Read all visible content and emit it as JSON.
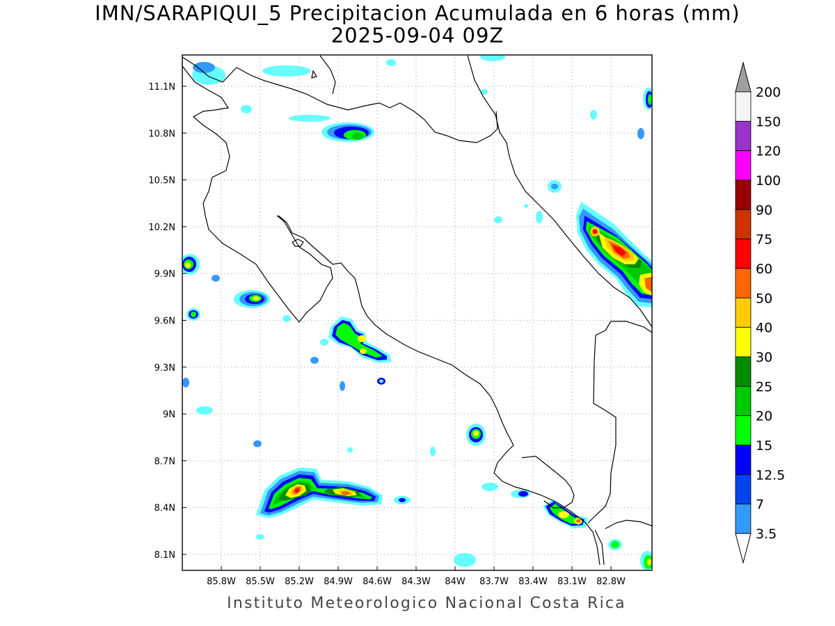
{
  "title_line1": "IMN/SARAPIQUI_5 Precipitacion Acumulada en 6 horas (mm)",
  "title_line2": "2025-09-04 09Z",
  "footer": "Instituto Meteorologico Nacional Costa Rica",
  "map": {
    "lon_range": [
      -86.05,
      -83.05
    ],
    "lat_range": [
      8.0,
      11.3
    ],
    "lon_ticks": [
      "85.8W",
      "85.5W",
      "85.2W",
      "84.9W",
      "84.6W",
      "84.3W",
      "84W",
      "83.7W",
      "83.4W",
      "83.1W",
      "82.8W"
    ],
    "lat_ticks": [
      "11.1N",
      "10.8N",
      "10.5N",
      "10.2N",
      "9.9N",
      "9.6N",
      "9.3N",
      "9N",
      "8.7N",
      "8.4N",
      "8.1N"
    ]
  },
  "colorbar": {
    "levels": [
      "3.5",
      "7",
      "12.5",
      "15",
      "20",
      "25",
      "30",
      "40",
      "50",
      "60",
      "75",
      "90",
      "100",
      "120",
      "150",
      "200"
    ],
    "colors": [
      "#66ffff",
      "#3399ff",
      "#0044ee",
      "#0000ff",
      "#00ff00",
      "#00c800",
      "#008c00",
      "#ffff00",
      "#ffcc00",
      "#ff6600",
      "#ff0000",
      "#cc3300",
      "#990000",
      "#ff00ff",
      "#9933cc",
      "#f4f4f4",
      "#a0a0a0"
    ],
    "upper_arrow_color": "#a0a0a0",
    "lower_arrow_color": "#ffffff"
  },
  "chart_data": {
    "type": "heatmap",
    "variable": "6-hour accumulated precipitation (mm)",
    "cells": [
      {
        "lon": -83.1,
        "lat": 10.05,
        "value": 60
      },
      {
        "lon": -83.2,
        "lat": 10.1,
        "value": 50
      },
      {
        "lon": -83.35,
        "lat": 10.17,
        "value": 40
      },
      {
        "lon": -83.05,
        "lat": 9.83,
        "value": 60
      },
      {
        "lon": -85.14,
        "lat": 8.52,
        "value": 60
      },
      {
        "lon": -84.85,
        "lat": 8.48,
        "value": 50
      },
      {
        "lon": -84.8,
        "lat": 10.8,
        "value": 20
      },
      {
        "lon": -85.45,
        "lat": 9.74,
        "value": 15
      },
      {
        "lon": -86.0,
        "lat": 9.95,
        "value": 20
      },
      {
        "lon": -85.9,
        "lat": 9.63,
        "value": 15
      },
      {
        "lon": -84.78,
        "lat": 9.53,
        "value": 20
      },
      {
        "lon": -84.65,
        "lat": 9.4,
        "value": 20
      },
      {
        "lon": -83.87,
        "lat": 8.87,
        "value": 20
      },
      {
        "lon": -83.18,
        "lat": 8.35,
        "value": 40
      },
      {
        "lon": -83.08,
        "lat": 8.32,
        "value": 40
      },
      {
        "lon": -83.06,
        "lat": 11.03,
        "value": 15
      },
      {
        "lon": -82.95,
        "lat": 8.08,
        "value": 15
      },
      {
        "lon": -82.98,
        "lat": 8.18,
        "value": 15
      }
    ]
  }
}
